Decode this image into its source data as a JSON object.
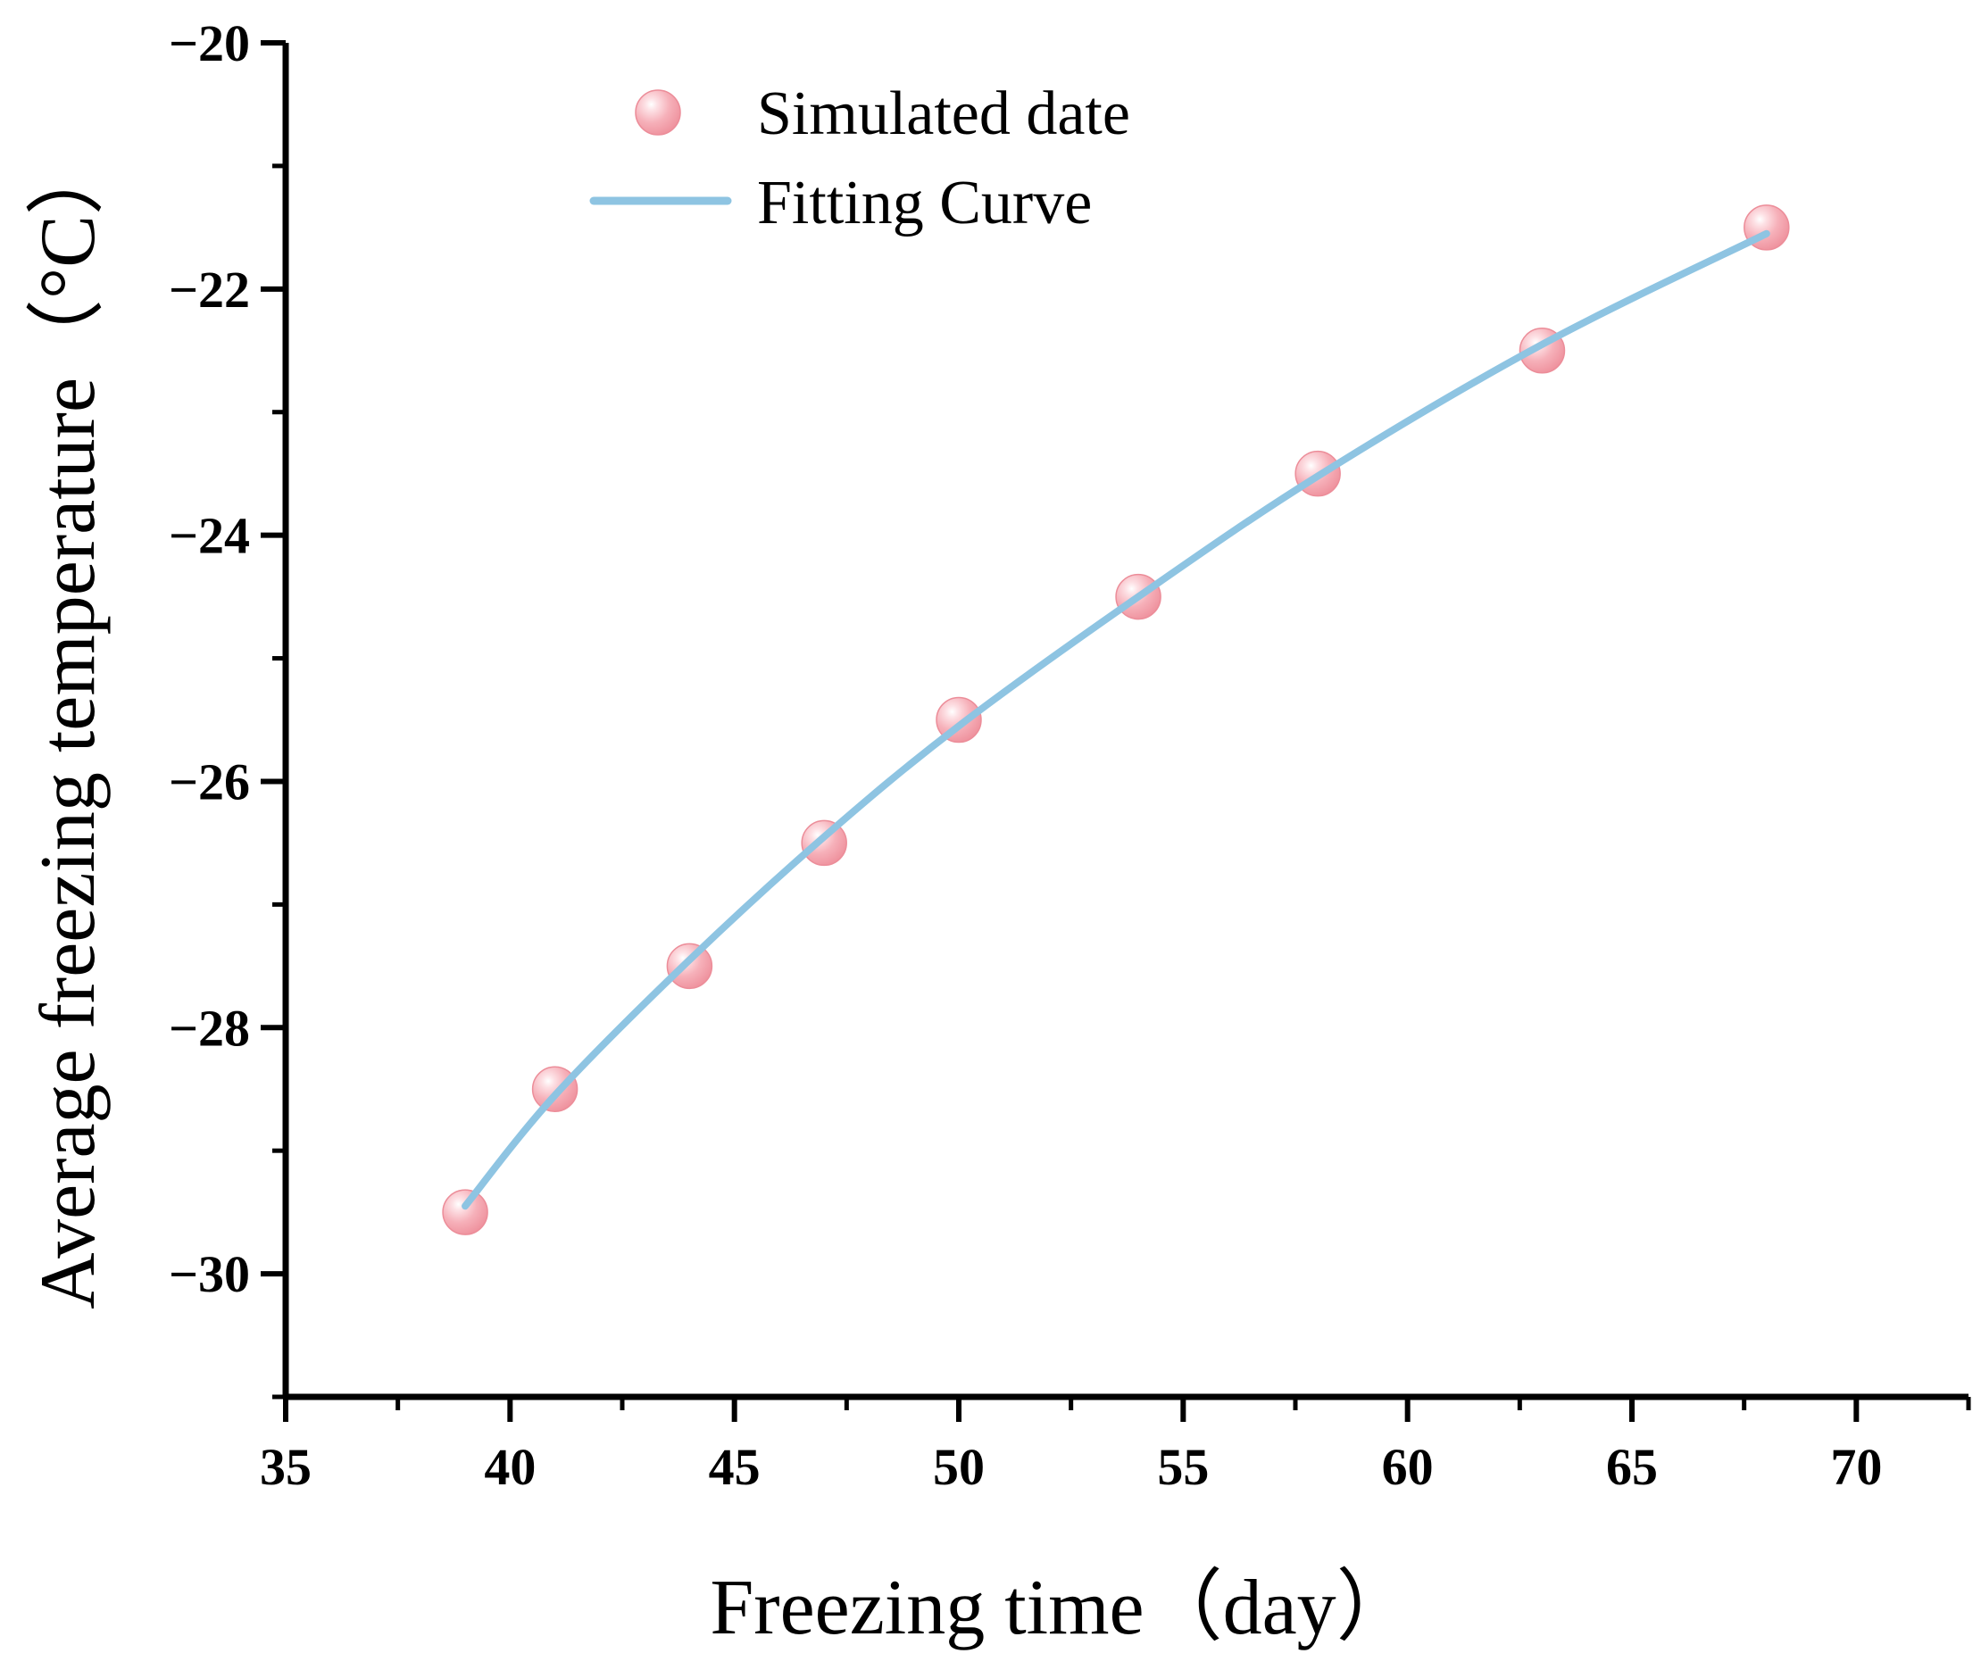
{
  "chart_data": {
    "type": "scatter",
    "title": "",
    "xlabel": "Freezing time（day）",
    "ylabel": "Average freezing temperature（°C）",
    "xlim": [
      35,
      72.5
    ],
    "ylim": [
      -31,
      -20
    ],
    "x_ticks": [
      35,
      40,
      45,
      50,
      55,
      60,
      65,
      70
    ],
    "x_tick_labels": [
      "35",
      "40",
      "45",
      "50",
      "55",
      "60",
      "65",
      "70"
    ],
    "y_ticks": [
      -30,
      -28,
      -26,
      -24,
      -22,
      -20
    ],
    "y_tick_labels": [
      "−30",
      "−28",
      "−26",
      "−24",
      "−22",
      "−20"
    ],
    "x_minor_ticks": [
      37.5,
      42.5,
      47.5,
      52.5,
      57.5,
      62.5,
      67.5,
      72.5
    ],
    "y_minor_ticks": [
      -31,
      -29,
      -27,
      -25,
      -23,
      -21
    ],
    "grid": false,
    "legend_position": "top-left",
    "series": [
      {
        "name": "Simulated date",
        "kind": "scatter",
        "color": "#f4a3ad",
        "x": [
          39,
          41,
          44,
          47,
          50,
          54,
          58,
          63,
          68
        ],
        "y": [
          -29.5,
          -28.5,
          -27.5,
          -26.5,
          -25.5,
          -24.5,
          -23.5,
          -22.5,
          -21.5
        ]
      },
      {
        "name": "Fitting Curve",
        "kind": "line",
        "color": "#8ec4e2",
        "x": [
          39,
          41,
          44,
          47,
          50,
          54,
          58,
          63,
          68
        ],
        "y": [
          -29.45,
          -28.55,
          -27.45,
          -26.45,
          -25.55,
          -24.5,
          -23.52,
          -22.45,
          -21.55
        ]
      }
    ]
  }
}
